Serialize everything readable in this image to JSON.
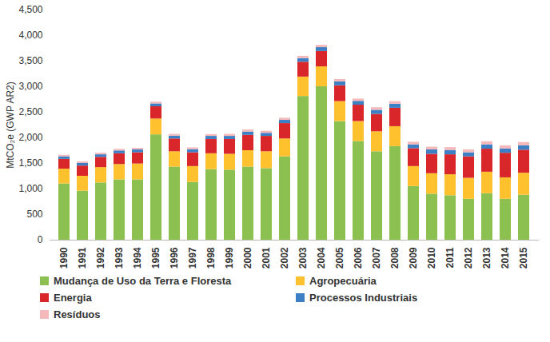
{
  "chart_data": {
    "type": "bar",
    "stacked": true,
    "y_label": "MtCO₂e (GWP AR2)",
    "categories": [
      "1990",
      "1991",
      "1992",
      "1993",
      "1994",
      "1995",
      "1996",
      "1997",
      "1998",
      "1999",
      "2000",
      "2001",
      "2002",
      "2003",
      "2004",
      "2005",
      "2006",
      "2007",
      "2008",
      "2009",
      "2010",
      "2011",
      "2012",
      "2013",
      "2014",
      "2015"
    ],
    "ylim": [
      0,
      4500
    ],
    "yticks": [
      0,
      500,
      {
        "value": 1000,
        "label": "1,000"
      },
      {
        "value": 1500,
        "label": "1,500"
      },
      {
        "value": 2000,
        "label": "2,000"
      },
      {
        "value": 2500,
        "label": "2,500"
      },
      {
        "value": 3000,
        "label": "3,000"
      },
      {
        "value": 3500,
        "label": "3,500"
      },
      {
        "value": 4000,
        "label": "4,000"
      },
      {
        "value": 4500,
        "label": "4,500"
      }
    ],
    "legend": "bottom",
    "series": [
      {
        "name": "Mudança de Uso da Terra e Floresta",
        "color": "#8cc152",
        "values": [
          1100,
          960,
          1120,
          1180,
          1180,
          2060,
          1430,
          1130,
          1380,
          1370,
          1430,
          1400,
          1630,
          2810,
          3000,
          2320,
          1930,
          1730,
          1830,
          1050,
          900,
          870,
          800,
          910,
          800,
          880
        ]
      },
      {
        "name": "Agropecuária",
        "color": "#ffc12e",
        "values": [
          290,
          290,
          300,
          300,
          310,
          310,
          300,
          310,
          310,
          310,
          320,
          330,
          350,
          380,
          390,
          390,
          390,
          390,
          390,
          390,
          400,
          410,
          410,
          420,
          420,
          430
        ]
      },
      {
        "name": "Energia",
        "color": "#d9262a",
        "values": [
          190,
          200,
          200,
          210,
          220,
          240,
          250,
          270,
          280,
          290,
          300,
          300,
          300,
          290,
          300,
          310,
          320,
          340,
          360,
          350,
          380,
          390,
          420,
          450,
          480,
          450
        ]
      },
      {
        "name": "Processos Industriais",
        "color": "#3d7fc4",
        "values": [
          50,
          50,
          50,
          55,
          55,
          55,
          55,
          60,
          60,
          60,
          65,
          60,
          65,
          70,
          75,
          75,
          75,
          80,
          80,
          75,
          85,
          85,
          80,
          85,
          85,
          85
        ]
      },
      {
        "name": "Resíduos",
        "color": "#f5b8bb",
        "values": [
          30,
          30,
          30,
          30,
          30,
          35,
          35,
          35,
          35,
          40,
          40,
          40,
          40,
          45,
          45,
          45,
          45,
          50,
          50,
          50,
          55,
          55,
          55,
          60,
          60,
          65
        ]
      }
    ]
  }
}
